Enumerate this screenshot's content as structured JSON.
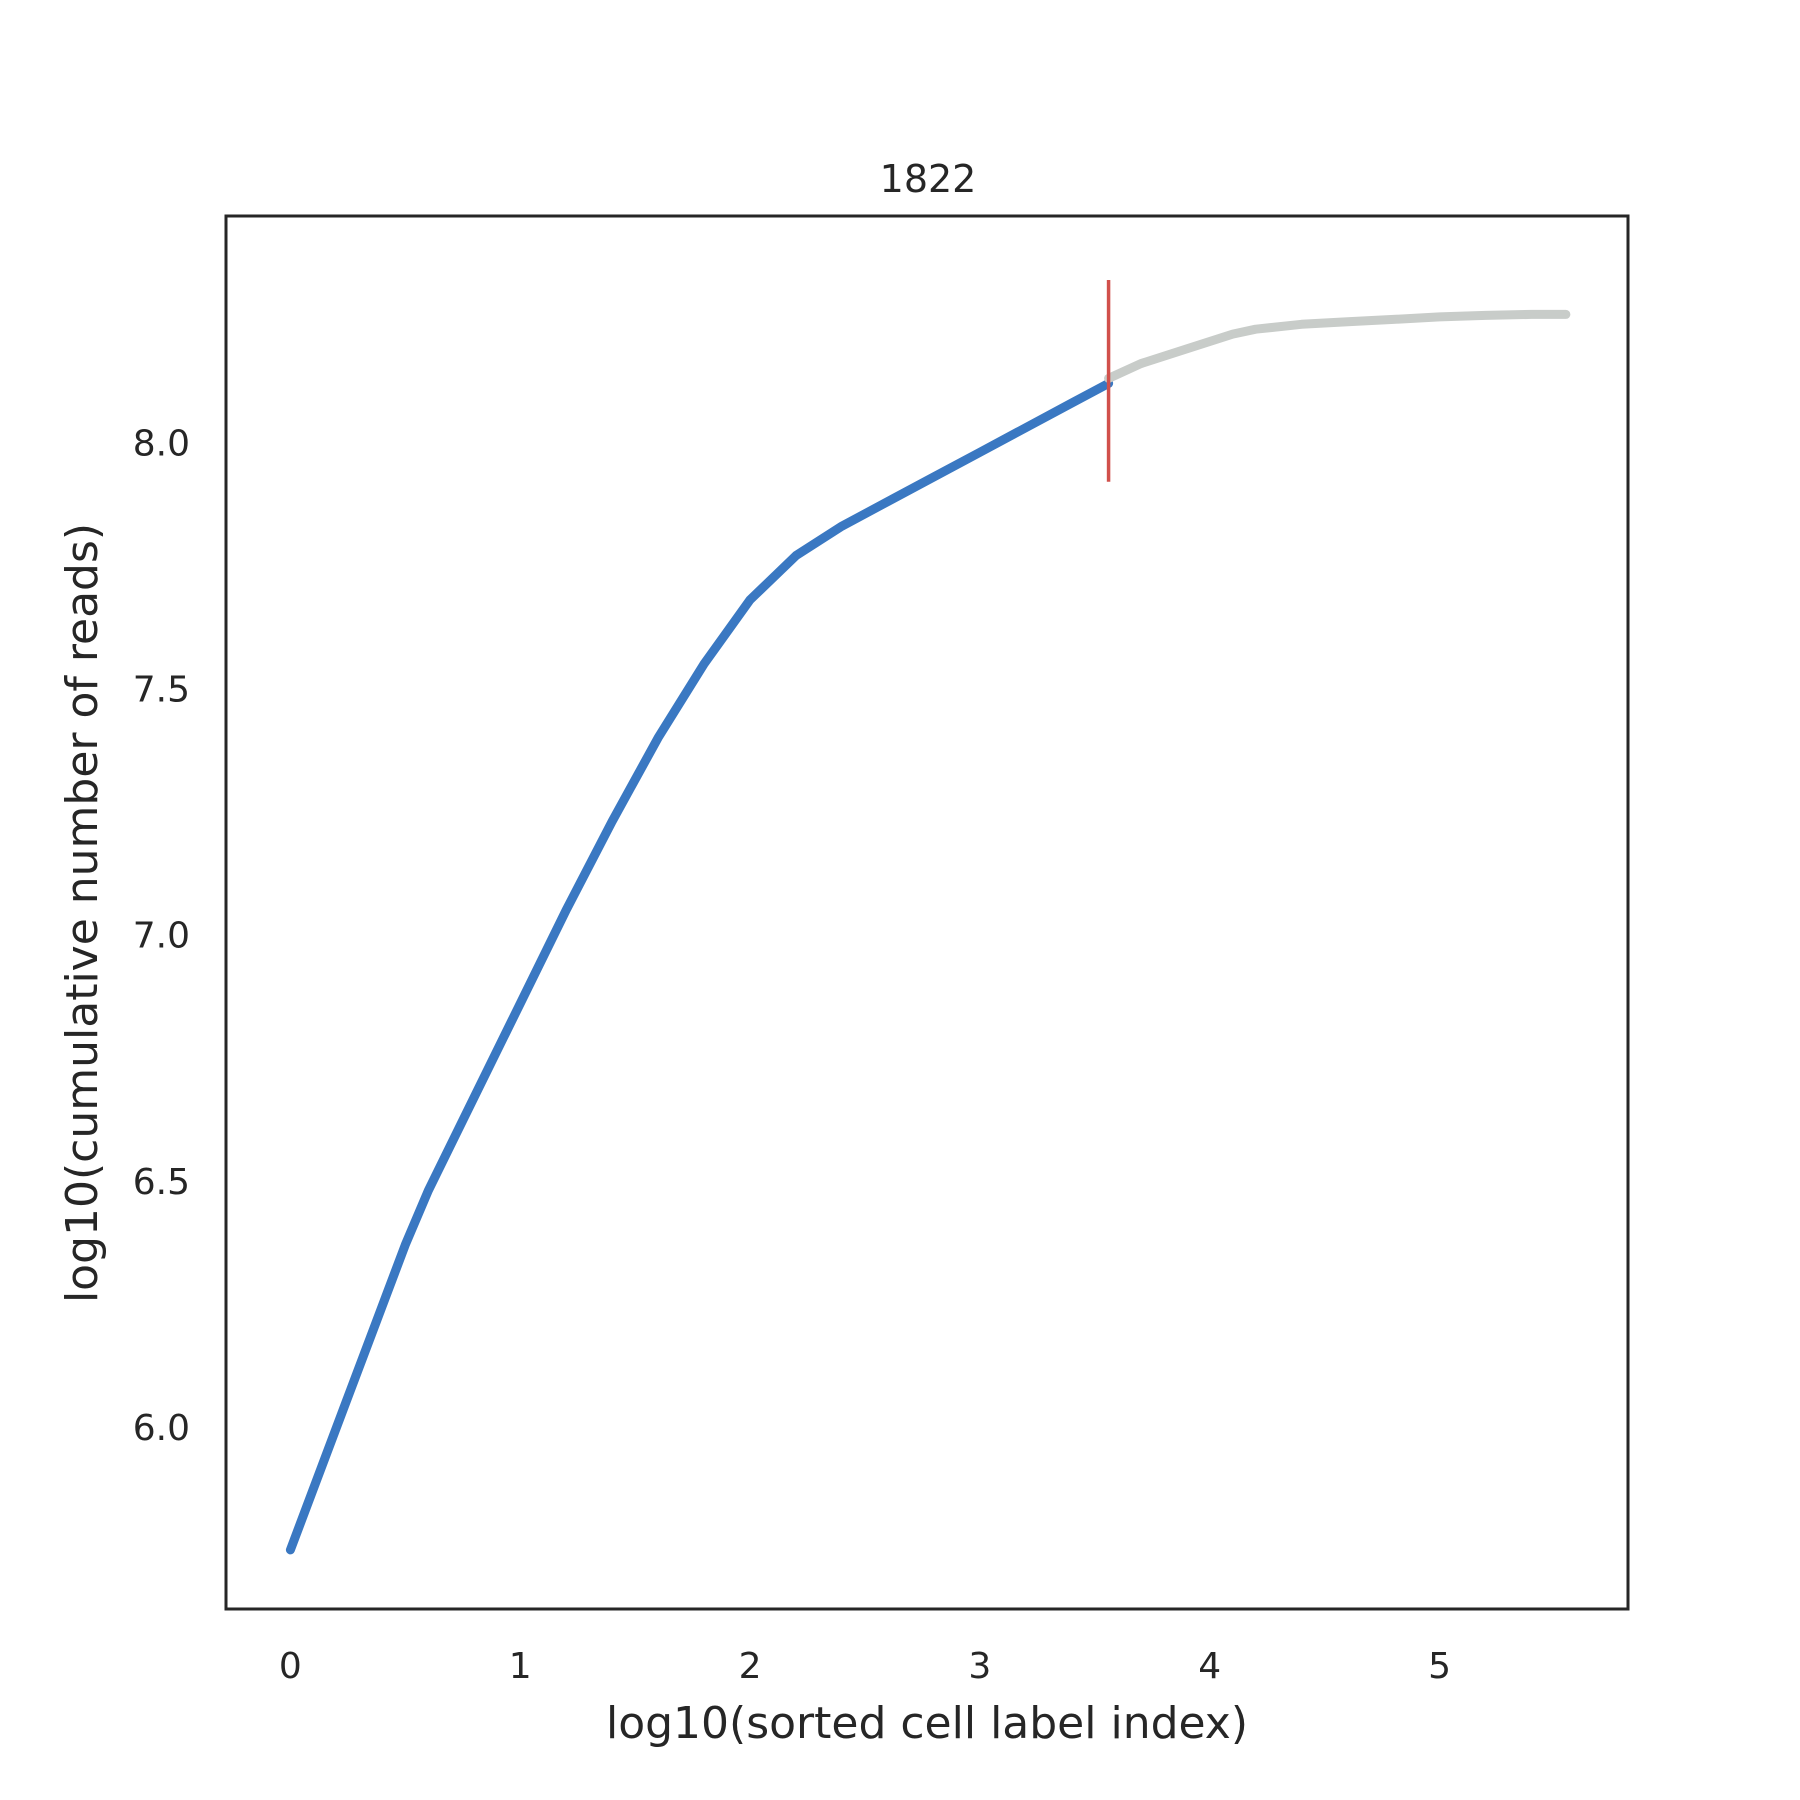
{
  "chart_data": {
    "type": "line",
    "title": "1822",
    "xlabel": "log10(sorted cell label index)",
    "ylabel": "log10(cumulative number of reads)",
    "xlim": [
      -0.28,
      5.82
    ],
    "ylim": [
      5.63,
      8.46
    ],
    "xticks": [
      0,
      1,
      2,
      3,
      4,
      5
    ],
    "xtick_labels": [
      "0",
      "1",
      "2",
      "3",
      "4",
      "5"
    ],
    "yticks": [
      6.0,
      6.5,
      7.0,
      7.5,
      8.0
    ],
    "ytick_labels": [
      "6.0",
      "6.5",
      "7.0",
      "7.5",
      "8.0"
    ],
    "grid": false,
    "series": [
      {
        "role": "cells",
        "color": "#3a78c2",
        "x": [
          0,
          0.25,
          0.5,
          0.6,
          0.8,
          1.0,
          1.2,
          1.4,
          1.6,
          1.8,
          2.0,
          2.2,
          2.4,
          2.6,
          2.8,
          3.0,
          3.2,
          3.4,
          3.56
        ],
        "y": [
          5.75,
          6.06,
          6.37,
          6.48,
          6.67,
          6.86,
          7.05,
          7.23,
          7.4,
          7.55,
          7.68,
          7.77,
          7.83,
          7.88,
          7.93,
          7.98,
          8.03,
          8.08,
          8.12
        ]
      },
      {
        "role": "noise",
        "color": "#c8ccc9",
        "x": [
          3.56,
          3.7,
          3.9,
          4.1,
          4.2,
          4.4,
          4.6,
          4.8,
          5.0,
          5.2,
          5.4,
          5.55
        ],
        "y": [
          8.13,
          8.16,
          8.19,
          8.22,
          8.23,
          8.24,
          8.245,
          8.25,
          8.255,
          8.258,
          8.26,
          8.26
        ]
      }
    ],
    "cutoff_marker": {
      "x": 3.56,
      "y_range": [
        7.92,
        8.33
      ],
      "color": "#d1504b"
    }
  }
}
